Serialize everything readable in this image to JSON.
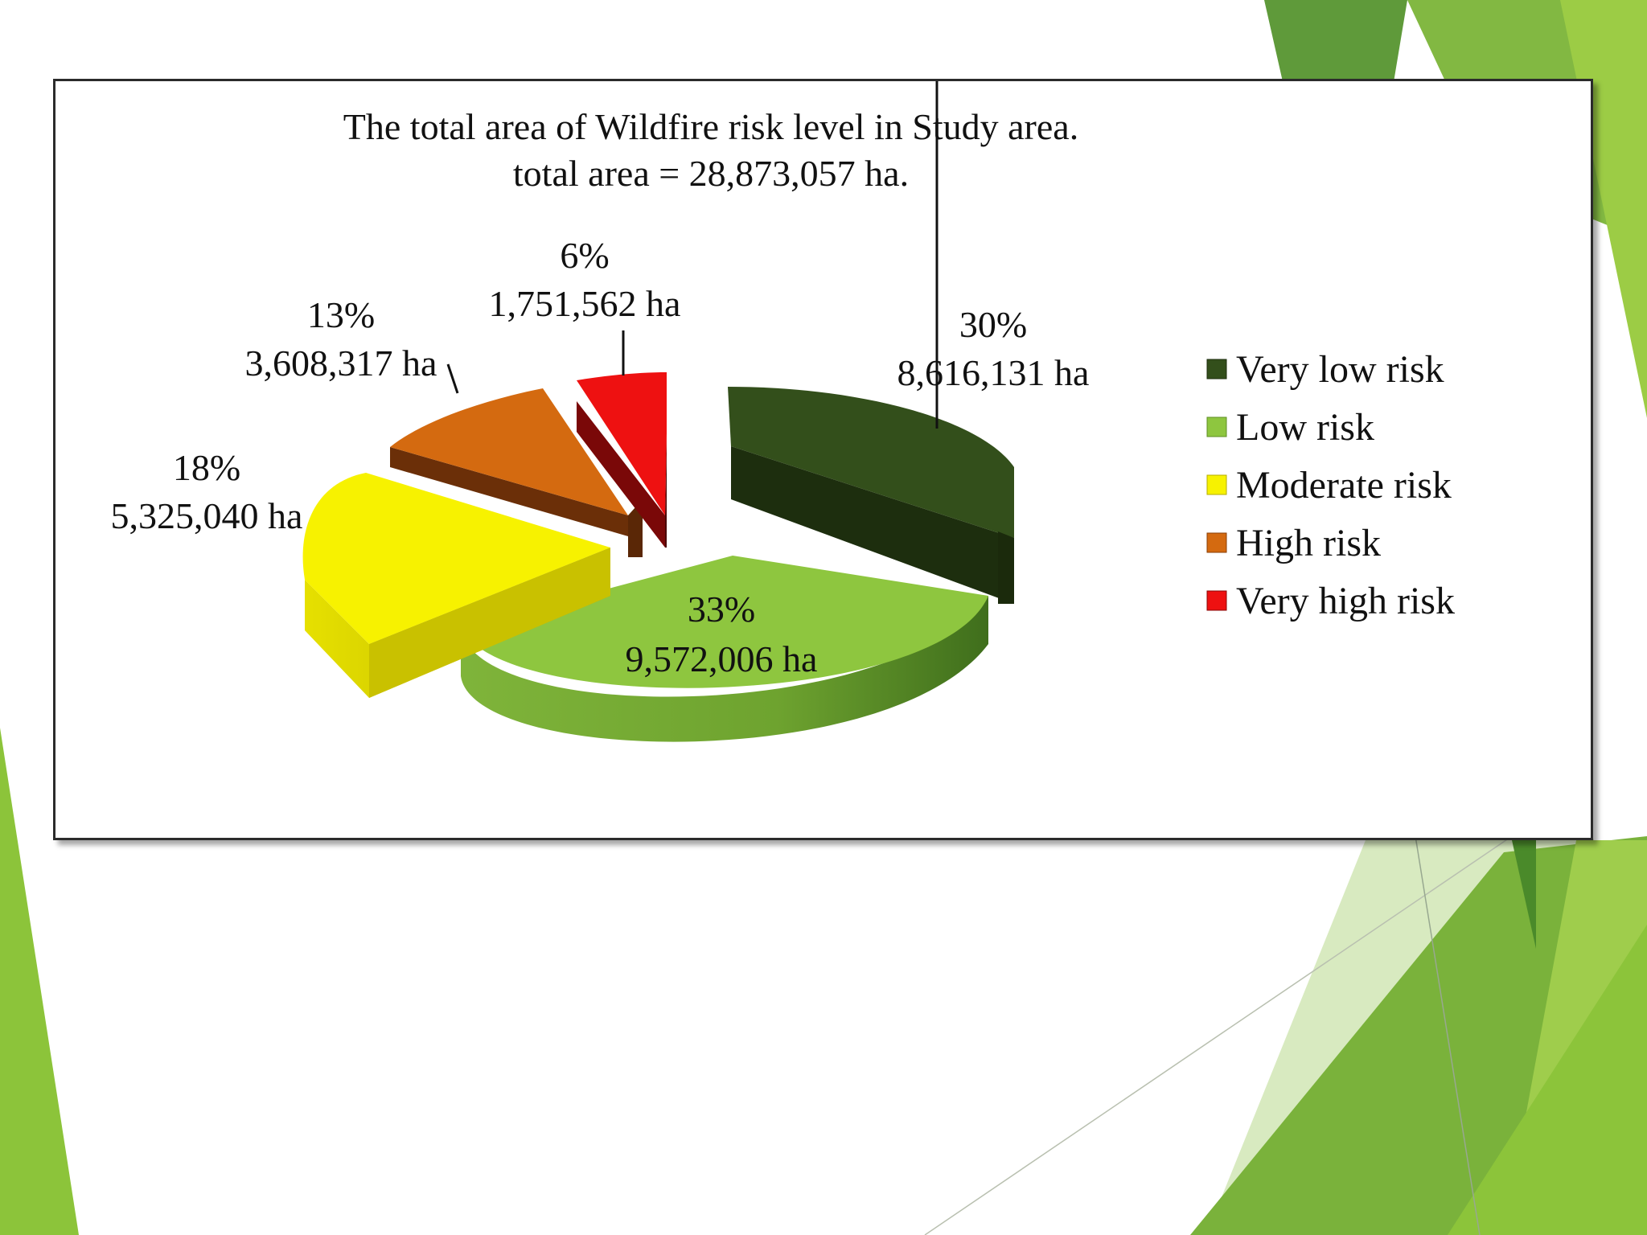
{
  "chart_data": {
    "type": "pie",
    "title": "The total area of Wildfire risk level in Study area.",
    "subtitle": "total area = 28,873,057 ha.",
    "legend_position": "right",
    "slices": [
      {
        "name": "Very low risk",
        "percent": 30,
        "value": 8616131,
        "pct_label": "30%",
        "value_label": "8,616,131 ha",
        "color": "#3a5a1f"
      },
      {
        "name": "Low risk",
        "percent": 33,
        "value": 9572006,
        "pct_label": "33%",
        "value_label": "9,572,006 ha",
        "color": "#8dc63f"
      },
      {
        "name": "Moderate risk",
        "percent": 18,
        "value": 5325040,
        "pct_label": "18%",
        "value_label": "5,325,040 ha",
        "color": "#f7f200"
      },
      {
        "name": "High risk",
        "percent": 13,
        "value": 3608317,
        "pct_label": "13%",
        "value_label": "3,608,317 ha",
        "color": "#d9690e"
      },
      {
        "name": "Very high risk",
        "percent": 6,
        "value": 1751562,
        "pct_label": "6%",
        "value_label": "1,751,562 ha",
        "color": "#ee1111"
      }
    ]
  }
}
